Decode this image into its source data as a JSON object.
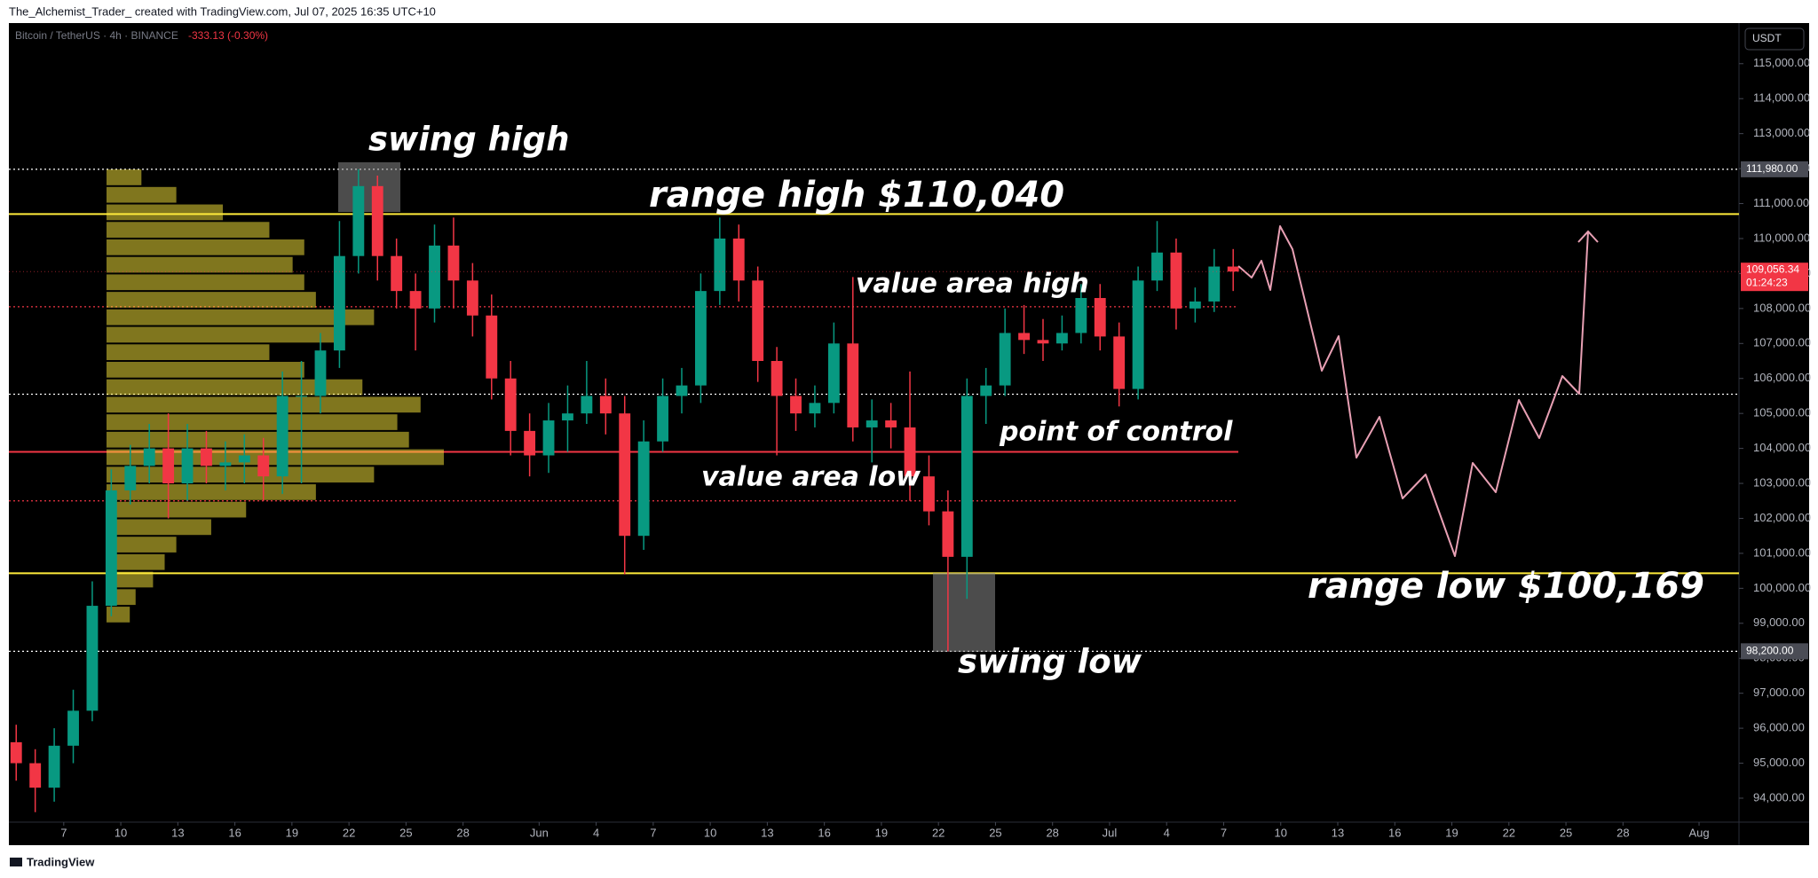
{
  "header": {
    "author_line": "The_Alchemist_Trader_ created with TradingView.com, Jul 07, 2025 16:35 UTC+10",
    "footer": "TradingView"
  },
  "chart_data": {
    "type": "candlestick",
    "title": "Bitcoin / TetherUS · 4h · BINANCE",
    "change": "-333.13 (-0.30%)",
    "currency": "USDT",
    "x": [
      "2025-05-04T12:00",
      "2025-05-05T12:00",
      "2025-05-06T12:00",
      "2025-05-07T12:00",
      "2025-05-08T12:00",
      "2025-05-09T12:00",
      "2025-05-10T12:00",
      "2025-05-11T12:00",
      "2025-05-12T12:00",
      "2025-05-13T12:00",
      "2025-05-14T12:00",
      "2025-05-15T12:00",
      "2025-05-16T12:00",
      "2025-05-17T12:00",
      "2025-05-18T12:00",
      "2025-05-19T12:00",
      "2025-05-20T12:00",
      "2025-05-21T12:00",
      "2025-05-22T12:00",
      "2025-05-23T12:00",
      "2025-05-24T12:00",
      "2025-05-25T12:00",
      "2025-05-26T12:00",
      "2025-05-27T12:00",
      "2025-05-28T12:00",
      "2025-05-29T12:00",
      "2025-05-30T12:00",
      "2025-05-31T12:00",
      "2025-06-01T12:00",
      "2025-06-02T12:00",
      "2025-06-03T12:00",
      "2025-06-04T12:00",
      "2025-06-05T12:00",
      "2025-06-06T12:00",
      "2025-06-07T12:00",
      "2025-06-08T12:00",
      "2025-06-09T12:00",
      "2025-06-10T12:00",
      "2025-06-11T12:00",
      "2025-06-12T12:00",
      "2025-06-13T12:00",
      "2025-06-14T12:00",
      "2025-06-15T12:00",
      "2025-06-16T12:00",
      "2025-06-17T12:00",
      "2025-06-18T12:00",
      "2025-06-19T12:00",
      "2025-06-20T12:00",
      "2025-06-21T12:00",
      "2025-06-22T12:00",
      "2025-06-23T12:00",
      "2025-06-24T12:00",
      "2025-06-25T12:00",
      "2025-06-26T12:00",
      "2025-06-27T12:00",
      "2025-06-28T12:00",
      "2025-06-29T12:00",
      "2025-06-30T12:00",
      "2025-07-01T12:00",
      "2025-07-02T12:00",
      "2025-07-03T12:00",
      "2025-07-04T12:00",
      "2025-07-05T12:00",
      "2025-07-06T12:00",
      "2025-07-07T12:00"
    ],
    "open": [
      95600,
      95000,
      94300,
      95500,
      96500,
      99500,
      102800,
      103500,
      104000,
      103000,
      104000,
      103500,
      103600,
      103800,
      103200,
      105500,
      105500,
      106800,
      109500,
      111500,
      109500,
      108500,
      108000,
      109800,
      108800,
      107800,
      106000,
      104500,
      103800,
      104800,
      105000,
      105500,
      105000,
      101500,
      104200,
      105500,
      105800,
      108500,
      110000,
      108800,
      106500,
      105500,
      105000,
      105300,
      107000,
      104600,
      104800,
      104600,
      103200,
      102200,
      100900,
      105500,
      105800,
      107300,
      107100,
      107000,
      107300,
      108300,
      107200,
      105700,
      108800,
      109600,
      108000,
      108200,
      109200
    ],
    "high": [
      96100,
      95400,
      96000,
      97100,
      100200,
      103400,
      104100,
      104700,
      105000,
      104700,
      104500,
      104200,
      104400,
      104300,
      106200,
      106500,
      107300,
      110500,
      111980,
      111800,
      110000,
      109000,
      110400,
      110600,
      109300,
      108400,
      106500,
      105000,
      105300,
      105800,
      106500,
      106000,
      105500,
      104800,
      106000,
      106300,
      109000,
      110600,
      110400,
      109200,
      106900,
      106000,
      105800,
      107600,
      108900,
      105400,
      105300,
      106200,
      103800,
      102800,
      106000,
      106300,
      108000,
      108100,
      107700,
      107800,
      108700,
      108700,
      107600,
      109200,
      110500,
      110000,
      108600,
      109700,
      109700
    ],
    "low": [
      94500,
      93600,
      93900,
      95000,
      96200,
      99200,
      102400,
      103000,
      102000,
      102500,
      103000,
      102800,
      103000,
      102500,
      102700,
      103000,
      105000,
      106300,
      109000,
      108800,
      108000,
      106800,
      107600,
      108000,
      107200,
      105400,
      103800,
      103200,
      103300,
      103900,
      104700,
      104400,
      100400,
      101100,
      103900,
      105000,
      105300,
      108100,
      108200,
      105900,
      103800,
      104500,
      104600,
      105000,
      104200,
      103600,
      104000,
      102500,
      101800,
      98200,
      99700,
      104700,
      105500,
      106700,
      106500,
      106800,
      107000,
      106800,
      105200,
      105400,
      108500,
      107400,
      107600,
      107900,
      108500
    ],
    "close": [
      95000,
      94300,
      95500,
      96500,
      99500,
      102800,
      103500,
      104000,
      103000,
      104000,
      103500,
      103600,
      103800,
      103200,
      105500,
      105500,
      106800,
      109500,
      111500,
      109500,
      108500,
      108000,
      109800,
      108800,
      107800,
      106000,
      104500,
      103800,
      104800,
      105000,
      105500,
      105000,
      101500,
      104200,
      105500,
      105800,
      108500,
      110000,
      108800,
      106500,
      105500,
      105000,
      105300,
      107000,
      104600,
      104800,
      104600,
      103200,
      102200,
      100900,
      105500,
      105800,
      107300,
      107100,
      107000,
      107300,
      108300,
      107200,
      105700,
      108800,
      109600,
      108000,
      108200,
      109200,
      109056.34
    ],
    "up_color": "#089981",
    "down_color": "#f23645",
    "ylim": [
      93315,
      116161
    ],
    "yticks": [
      {
        "value": 94000,
        "label": "94,000.00"
      },
      {
        "value": 95000,
        "label": "95,000.00"
      },
      {
        "value": 96000,
        "label": "96,000.00"
      },
      {
        "value": 97000,
        "label": "97,000.00"
      },
      {
        "value": 98000,
        "label": "98,000.00"
      },
      {
        "value": 99000,
        "label": "99,000.00"
      },
      {
        "value": 100000,
        "label": "100,000.00"
      },
      {
        "value": 101000,
        "label": "101,000.00"
      },
      {
        "value": 102000,
        "label": "102,000.00"
      },
      {
        "value": 103000,
        "label": "103,000.00"
      },
      {
        "value": 104000,
        "label": "104,000.00"
      },
      {
        "value": 105000,
        "label": "105,000.00"
      },
      {
        "value": 106000,
        "label": "106,000.00"
      },
      {
        "value": 107000,
        "label": "107,000.00"
      },
      {
        "value": 108000,
        "label": "108,000.00"
      },
      {
        "value": 109000,
        "label": "109,000.00"
      },
      {
        "value": 110000,
        "label": "110,000.00"
      },
      {
        "value": 111000,
        "label": "111,000.00"
      },
      {
        "value": 112000,
        "label": "112,000.00"
      },
      {
        "value": 113000,
        "label": "113,000.00"
      },
      {
        "value": 114000,
        "label": "114,000.00"
      },
      {
        "value": 115000,
        "label": "115,000.00"
      }
    ],
    "xlim": [
      "2025-05-04T02:45",
      "2025-08-03T02:24"
    ],
    "xticks": [
      {
        "value": "2025-05-07T00:00",
        "label": "7"
      },
      {
        "value": "2025-05-10T00:00",
        "label": "10"
      },
      {
        "value": "2025-05-13T00:00",
        "label": "13"
      },
      {
        "value": "2025-05-16T00:00",
        "label": "16"
      },
      {
        "value": "2025-05-19T00:00",
        "label": "19"
      },
      {
        "value": "2025-05-22T00:00",
        "label": "22"
      },
      {
        "value": "2025-05-25T00:00",
        "label": "25"
      },
      {
        "value": "2025-05-28T00:00",
        "label": "28"
      },
      {
        "value": "2025-06-01T00:00",
        "label": "Jun"
      },
      {
        "value": "2025-06-04T00:00",
        "label": "4"
      },
      {
        "value": "2025-06-07T00:00",
        "label": "7"
      },
      {
        "value": "2025-06-10T00:00",
        "label": "10"
      },
      {
        "value": "2025-06-13T00:00",
        "label": "13"
      },
      {
        "value": "2025-06-16T00:00",
        "label": "16"
      },
      {
        "value": "2025-06-19T00:00",
        "label": "19"
      },
      {
        "value": "2025-06-22T00:00",
        "label": "22"
      },
      {
        "value": "2025-06-25T00:00",
        "label": "25"
      },
      {
        "value": "2025-06-28T00:00",
        "label": "28"
      },
      {
        "value": "2025-07-01T00:00",
        "label": "Jul"
      },
      {
        "value": "2025-07-04T00:00",
        "label": "4"
      },
      {
        "value": "2025-07-07T00:00",
        "label": "7"
      },
      {
        "value": "2025-07-10T00:00",
        "label": "10"
      },
      {
        "value": "2025-07-13T00:00",
        "label": "13"
      },
      {
        "value": "2025-07-16T00:00",
        "label": "16"
      },
      {
        "value": "2025-07-19T00:00",
        "label": "19"
      },
      {
        "value": "2025-07-22T00:00",
        "label": "22"
      },
      {
        "value": "2025-07-25T00:00",
        "label": "25"
      },
      {
        "value": "2025-07-28T00:00",
        "label": "28"
      },
      {
        "value": "2025-08-01T00:00",
        "label": "Aug"
      }
    ],
    "last": {
      "value": 109056.34,
      "label": "109,056.34",
      "countdown": "01:24:23",
      "color": "#f23645"
    },
    "levels": [
      {
        "value": 111980,
        "label": "111,980.00",
        "color": "#ffffff",
        "dash": true
      },
      {
        "value": 110700,
        "color": "#ffeb3b",
        "dash": false
      },
      {
        "value": 108050,
        "color": "#f23645",
        "dash": true,
        "to": "2025-07-07T18:30"
      },
      {
        "value": 105550,
        "color": "#ffffff",
        "dash": true
      },
      {
        "value": 103900,
        "color": "#f23645",
        "dash": false,
        "to": "2025-07-07T18:30"
      },
      {
        "value": 102500,
        "color": "#f23645",
        "dash": true,
        "to": "2025-07-07T18:30"
      },
      {
        "value": 100430,
        "color": "#ffeb3b",
        "dash": false
      },
      {
        "value": 98200,
        "label": "98,200.00",
        "color": "#ffffff",
        "dash": true
      }
    ],
    "profile": {
      "bins": [
        99000,
        99500,
        100000,
        100500,
        101000,
        101500,
        102000,
        102500,
        103000,
        103500,
        104000,
        104500,
        105000,
        105500,
        106000,
        106500,
        107000,
        107500,
        108000,
        108500,
        109000,
        109500,
        110000,
        110500,
        111000,
        111500,
        112000
      ],
      "values": [
        20,
        25,
        40,
        50,
        60,
        90,
        120,
        180,
        230,
        290,
        260,
        250,
        270,
        220,
        170,
        140,
        200,
        230,
        180,
        170,
        160,
        170,
        140,
        100,
        60,
        30
      ],
      "color": "#ffeb3b"
    },
    "annotations": [
      "swing high",
      "range high $110,040",
      "value area high",
      "point of control",
      "value area low",
      "range low $100,169",
      "swing low"
    ]
  }
}
